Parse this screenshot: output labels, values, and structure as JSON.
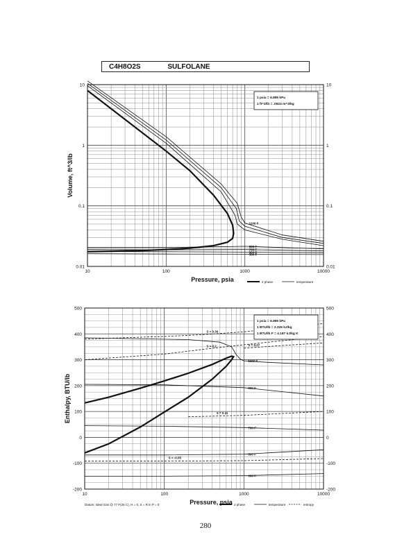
{
  "header": {
    "formula": "C4H8O2S",
    "compound": "SULFOLANE"
  },
  "page_number": "280",
  "chart_data": [
    {
      "type": "line",
      "xscale": "log",
      "yscale": "log",
      "xlim": [
        10,
        10000
      ],
      "ylim": [
        0.01,
        10
      ],
      "xlabel": "Pressure,  psia",
      "ylabel": "Volume, ft^3/lb",
      "xticks": [
        "10",
        "100",
        "1000",
        "10000"
      ],
      "yticks": [
        "10",
        "1",
        "0.1",
        "0.01"
      ],
      "conversions": [
        "1 psia  =  6.895 kPa",
        "1 ft^3/lb  =  .0624 m^3/kg"
      ],
      "legend": [
        {
          "label": "2 phase",
          "style": "thick"
        },
        {
          "label": "temperature",
          "style": "thin"
        }
      ],
      "series": [
        {
          "name": "2 phase",
          "style": "thick",
          "x": [
            10,
            20,
            50,
            100,
            200,
            400,
            600,
            700,
            720,
            700,
            600,
            400,
            200,
            100,
            50,
            20,
            10
          ],
          "y": [
            8.0,
            4.0,
            1.6,
            0.8,
            0.38,
            0.15,
            0.075,
            0.048,
            0.035,
            0.029,
            0.025,
            0.022,
            0.02,
            0.019,
            0.0183,
            0.0178,
            0.0175
          ]
        },
        {
          "label": "",
          "style": "thin",
          "x": [
            10,
            100,
            500,
            750,
            800,
            1000,
            3000,
            10000
          ],
          "y": [
            9.6,
            1.08,
            0.17,
            0.07,
            0.05,
            0.04,
            0.028,
            0.022
          ]
        },
        {
          "label": "",
          "style": "thin",
          "x": [
            10,
            100,
            500,
            780,
            850,
            1000,
            3000,
            10000
          ],
          "y": [
            10.5,
            1.22,
            0.2,
            0.09,
            0.056,
            0.046,
            0.03,
            0.024
          ]
        },
        {
          "label": "1100 F",
          "style": "thin",
          "x": [
            10,
            100,
            500,
            800,
            900,
            1000,
            3000,
            10000
          ],
          "y": [
            11.5,
            1.38,
            0.23,
            0.11,
            0.065,
            0.052,
            0.033,
            0.026
          ]
        },
        {
          "label": "900 F",
          "style": "thin",
          "x": [
            10,
            100,
            1000,
            10000
          ],
          "y": [
            0.0205,
            0.0205,
            0.0215,
            0.0195
          ]
        },
        {
          "label": "700 F",
          "style": "thin",
          "x": [
            10,
            100,
            1000,
            10000
          ],
          "y": [
            0.019,
            0.0188,
            0.019,
            0.018
          ]
        },
        {
          "label": "500 F",
          "style": "thin",
          "x": [
            10,
            100,
            1000,
            10000
          ],
          "y": [
            0.0176,
            0.0175,
            0.0172,
            0.0168
          ]
        },
        {
          "label": "300 F",
          "style": "thin",
          "x": [
            10,
            100,
            1000,
            10000
          ],
          "y": [
            0.0162,
            0.016,
            0.0159,
            0.0157
          ]
        }
      ]
    },
    {
      "type": "line",
      "xscale": "log",
      "yscale": "linear",
      "xlim": [
        10,
        10000
      ],
      "ylim": [
        -200,
        500
      ],
      "xlabel": "Pressure,  psia",
      "ylabel": "Enthalpy, BTU/lb",
      "xticks": [
        "10",
        "100",
        "1000",
        "10000"
      ],
      "yticks": [
        "500",
        "400",
        "300",
        "200",
        "100",
        "0",
        "-100",
        "-200"
      ],
      "conversions": [
        "1 psia  =  6.895 kPa",
        "1 BTU/lb  =  2.326 kJ/kg",
        "1 BTU/lb F  =  4.187 kJ/kg K"
      ],
      "legend": [
        {
          "label": "2 phase",
          "style": "thick"
        },
        {
          "label": "temperature",
          "style": "thin"
        },
        {
          "label": "entropy",
          "style": "dashed"
        }
      ],
      "footnote": "Datum: Ideal Gas @ 77 F(25 C),  H = 0,  S = R ln P = 0",
      "series": [
        {
          "name": "2 phase",
          "style": "thick",
          "x": [
            10,
            20,
            50,
            100,
            200,
            400,
            600,
            700,
            740,
            700,
            600,
            400,
            200,
            100,
            50,
            20,
            10
          ],
          "y": [
            133,
            155,
            190,
            218,
            248,
            282,
            306,
            314,
            312,
            300,
            275,
            225,
            155,
            98,
            40,
            -25,
            -60
          ]
        },
        {
          "label": "1100 F",
          "style": "thin",
          "x": [
            10,
            200,
            500,
            700,
            800,
            900,
            1000,
            2000,
            10000
          ],
          "y": [
            385,
            378,
            368,
            350,
            320,
            302,
            296,
            290,
            280
          ]
        },
        {
          "label": "900 F",
          "style": "thin",
          "x": [
            10,
            100,
            1000,
            10000
          ],
          "y": [
            205,
            203,
            192,
            160
          ]
        },
        {
          "label": "700 F",
          "style": "thin",
          "x": [
            10,
            100,
            1000,
            10000
          ],
          "y": [
            45,
            43,
            38,
            28
          ]
        },
        {
          "label": "500 F",
          "style": "thin",
          "x": [
            10,
            100,
            1000,
            10000
          ],
          "y": [
            -68,
            -68,
            -65,
            -48
          ]
        },
        {
          "label": "300 F",
          "style": "thin",
          "x": [
            10,
            100,
            1000,
            10000
          ],
          "y": [
            -150,
            -150,
            -148,
            -140
          ]
        },
        {
          "label": "S = 0.30",
          "style": "dashed",
          "x": [
            10,
            100,
            300,
            1000,
            10000
          ],
          "y": [
            380,
            390,
            397,
            408,
            440
          ]
        },
        {
          "label": "S = 0.2",
          "style": "dashed",
          "x": [
            10,
            100,
            300,
            1000,
            10000
          ],
          "y": [
            300,
            322,
            340,
            358,
            390
          ]
        },
        {
          "label": "S = 0.27",
          "style": "dashed",
          "x": [
            1000,
            3000,
            10000
          ],
          "y": [
            345,
            355,
            365
          ]
        },
        {
          "label": "S = 0.11",
          "style": "dashed",
          "x": [
            200,
            400,
            1000,
            10000
          ],
          "y": [
            80,
            82,
            85,
            100
          ]
        },
        {
          "label": "S = -0.05",
          "style": "dashed",
          "x": [
            10,
            100,
            1000,
            10000
          ],
          "y": [
            -92,
            -92,
            -90,
            -82
          ]
        }
      ]
    }
  ]
}
